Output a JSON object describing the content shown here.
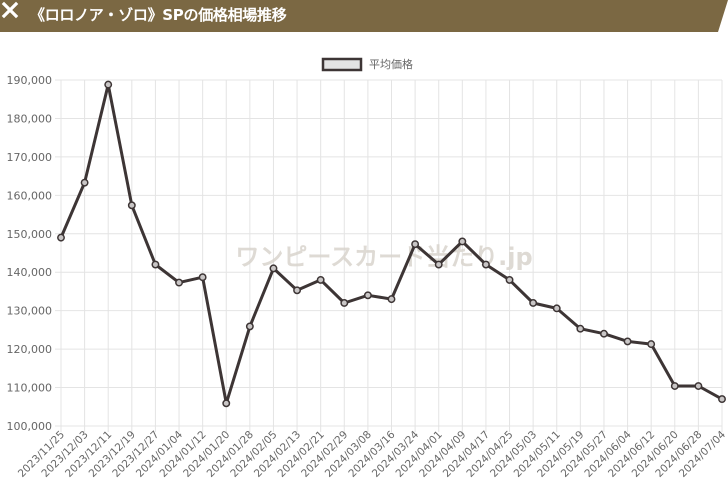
{
  "header": {
    "title": "《ロロノア・ゾロ》SPの価格相場推移",
    "background_color": "#7b6843",
    "close_icon": "close-icon"
  },
  "watermark": "ワンピースカード当たり.jp",
  "chart_data": {
    "type": "line",
    "legend": {
      "position": "top-center",
      "labels": [
        "平均価格"
      ]
    },
    "grid": true,
    "x_tick_labels": [
      "2023/11/25",
      "2023/12/03",
      "2023/12/11",
      "2023/12/19",
      "2023/12/27",
      "2024/01/04",
      "2024/01/12",
      "2024/01/20",
      "2024/01/28",
      "2024/02/05",
      "2024/02/13",
      "2024/02/21",
      "2024/02/29",
      "2024/03/08",
      "2024/03/16",
      "2024/03/24",
      "2024/04/01",
      "2024/04/09",
      "2024/04/17",
      "2024/04/25",
      "2024/05/03",
      "2024/05/11",
      "2024/05/19",
      "2024/05/27",
      "2024/06/04",
      "2024/06/12",
      "2024/06/20",
      "2024/06/28",
      "2024/07/04"
    ],
    "y_tick_labels": [
      "100,000",
      "110,000",
      "120,000",
      "130,000",
      "140,000",
      "150,000",
      "160,000",
      "170,000",
      "180,000",
      "190,000"
    ],
    "ylim": [
      100000,
      190000
    ],
    "series": [
      {
        "name": "平均価格",
        "color": "#3d3535",
        "x": [
          "2023/11/25",
          "2023/12/03",
          "2023/12/11",
          "2023/12/19",
          "2023/12/27",
          "2024/01/04",
          "2024/01/12",
          "2024/01/20",
          "2024/01/28",
          "2024/02/05",
          "2024/02/13",
          "2024/02/21",
          "2024/02/29",
          "2024/03/08",
          "2024/03/16",
          "2024/03/24",
          "2024/04/01",
          "2024/04/09",
          "2024/04/17",
          "2024/04/25",
          "2024/05/03",
          "2024/05/11",
          "2024/05/19",
          "2024/05/27",
          "2024/06/04",
          "2024/06/12",
          "2024/06/20",
          "2024/06/28",
          "2024/07/04"
        ],
        "values": [
          149000,
          163300,
          188800,
          157400,
          142000,
          137300,
          138700,
          105900,
          125900,
          141000,
          135300,
          138000,
          132000,
          134000,
          133000,
          147300,
          142000,
          148000,
          142000,
          138000,
          132000,
          130600,
          125300,
          124000,
          122000,
          121300,
          110400,
          110400,
          107000
        ]
      }
    ]
  }
}
